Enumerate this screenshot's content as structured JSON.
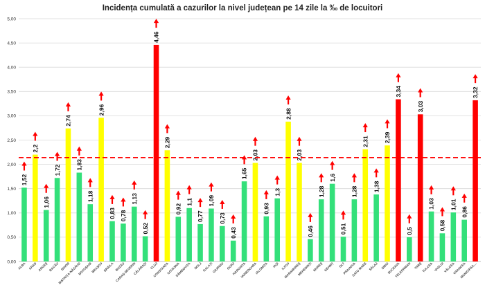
{
  "chart_data": {
    "type": "bar",
    "title": "Incidența cumulată a cazurilor la nivel județean pe 14 zile la ‰ de locuitori",
    "xlabel": "",
    "ylabel": "",
    "ylim": [
      0,
      5
    ],
    "yticks": [
      "0,00",
      "0,50",
      "1,00",
      "1,50",
      "2,00",
      "2,50",
      "3,00",
      "3,50",
      "4,00",
      "4,50",
      "5,00"
    ],
    "grid": true,
    "reference_line": 2.14,
    "colors": {
      "low": "#33e07a",
      "mid": "#ffff00",
      "high": "#ff0000",
      "arrow": "#ff0000",
      "reference": "#ff0000",
      "grid": "#d9d9d9"
    },
    "categories": [
      "ALBA",
      "ARAD",
      "ARGEȘ",
      "BACĂU",
      "BIHOR",
      "BISTRIȚA-NĂSĂUD",
      "BOTOȘANI",
      "BRAȘOV",
      "BRĂILA",
      "BUZĂU",
      "CARAȘ-SEVERIN",
      "CĂLĂRAȘI",
      "CLUJ",
      "CONSTANȚA",
      "COVASNA",
      "DÂMBOVIȚA",
      "DOLJ",
      "GALAȚI",
      "GIURGIU",
      "GORJ",
      "HARGHITA",
      "HUNEDOARA",
      "IALOMIȚA",
      "IAȘI",
      "ILFOV",
      "MARAMUREȘ",
      "MEHEDINȚI",
      "MUREȘ",
      "NEAMȚ",
      "OLT",
      "PRAHOVA",
      "SATU MARE",
      "SĂLAJ",
      "SIBIU",
      "SUCEAVA",
      "TELEORMAN",
      "TIMIȘ",
      "TULCEA",
      "VASLUI",
      "VÂLCEA",
      "VRANCEA",
      "MUNICIPIUL..."
    ],
    "values": [
      1.52,
      2.2,
      1.06,
      1.72,
      2.74,
      1.83,
      1.18,
      2.96,
      0.83,
      0.78,
      1.13,
      0.52,
      4.46,
      2.29,
      0.92,
      1.1,
      0.77,
      1.09,
      0.73,
      0.43,
      1.65,
      2.03,
      0.93,
      1.3,
      2.88,
      2.03,
      0.46,
      1.28,
      1.6,
      0.51,
      1.28,
      2.31,
      1.38,
      2.39,
      3.34,
      0.5,
      3.03,
      1.03,
      0.58,
      1.01,
      0.86,
      3.32
    ],
    "value_labels": [
      "1,52",
      "2,2",
      "1,06",
      "1,72",
      "2,74",
      "1,83",
      "1,18",
      "2,96",
      "0,83",
      "0,78",
      "1,13",
      "0,52",
      "4,46",
      "2,29",
      "0,92",
      "1,1",
      "0,77",
      "1,09",
      "0,73",
      "0,43",
      "1,65",
      "2,03",
      "0,93",
      "1,3",
      "2,88",
      "2,03",
      "0,46",
      "1,28",
      "1,6",
      "0,51",
      "1,28",
      "2,31",
      "1,38",
      "2,39",
      "3,34",
      "0,5",
      "3,03",
      "1,03",
      "0,58",
      "1,01",
      "0,86",
      "3,32"
    ],
    "trend": [
      "up",
      "up",
      "up",
      "up",
      "up",
      "up",
      "up",
      "up",
      "up",
      "up",
      "up",
      "up",
      "up",
      "up",
      "up",
      "up",
      "up",
      "up",
      "up",
      "up",
      "up",
      "up",
      "up",
      "up",
      "up",
      "up",
      "up",
      "up",
      "up",
      "up",
      "up",
      "up",
      "up",
      "up",
      "up",
      "up",
      "up",
      "up",
      "up",
      "up",
      "up",
      "up"
    ]
  }
}
